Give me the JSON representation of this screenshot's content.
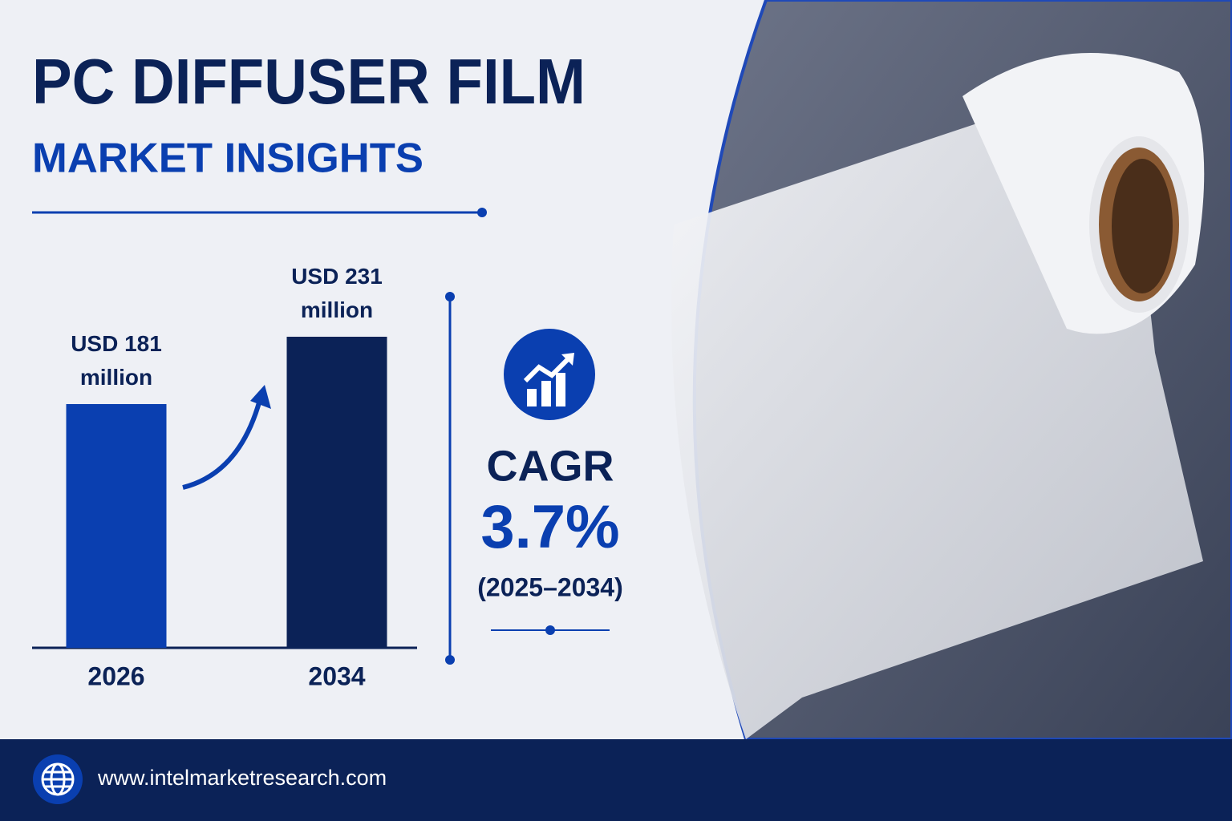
{
  "chart_data": {
    "type": "bar",
    "title": "PC DIFFUSER FILM",
    "subtitle": "MARKET INSIGHTS",
    "categories": [
      "2026",
      "2034"
    ],
    "values": [
      181,
      231
    ],
    "value_labels": [
      "USD 181 million",
      "USD 231 million"
    ],
    "colors": [
      "#0a3fb0",
      "#0b2257"
    ]
  },
  "cagr": {
    "label": "CAGR",
    "value": "3.7%",
    "period": "(2025–2034)"
  },
  "footer": {
    "url": "www.intelmarketresearch.com"
  }
}
